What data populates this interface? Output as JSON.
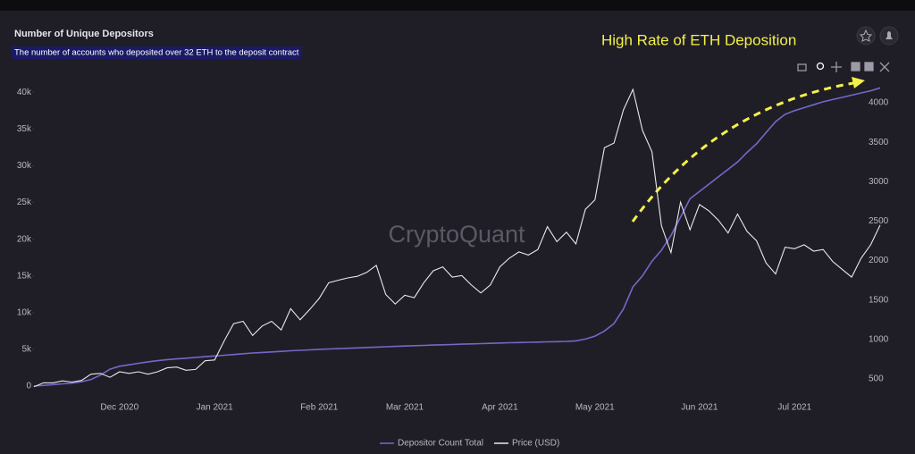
{
  "chart_data": {
    "type": "line",
    "title": "Number of Unique Depositors",
    "subtitle": "The number of accounts who deposited over 32 ETH to the deposit contract",
    "annotation": "High Rate of ETH Deposition",
    "watermark": "CryptoQuant",
    "categories": [
      null,
      null,
      null,
      null,
      null,
      null,
      null,
      null,
      null,
      "Dec 2020",
      null,
      null,
      null,
      null,
      null,
      null,
      null,
      null,
      null,
      "Jan 2021",
      null,
      null,
      null,
      null,
      null,
      null,
      null,
      null,
      null,
      null,
      "Feb 2021",
      null,
      null,
      null,
      null,
      null,
      null,
      null,
      null,
      "Mar 2021",
      null,
      null,
      null,
      null,
      null,
      null,
      null,
      null,
      null,
      "Apr 2021",
      null,
      null,
      null,
      null,
      null,
      null,
      null,
      null,
      null,
      "May 2021",
      null,
      null,
      null,
      null,
      null,
      null,
      null,
      null,
      null,
      null,
      "Jun 2021",
      null,
      null,
      null,
      null,
      null,
      null,
      null,
      null,
      null,
      "Jul 2021",
      null,
      null,
      null,
      null,
      null,
      null,
      null,
      null,
      null
    ],
    "series": [
      {
        "name": "Depositor Count Total",
        "color": "#7468c8",
        "values": [
          0,
          100,
          200,
          300,
          400,
          600,
          900,
          1500,
          2300,
          2700,
          2900,
          3100,
          3300,
          3450,
          3600,
          3700,
          3800,
          3900,
          4000,
          4100,
          4200,
          4300,
          4400,
          4500,
          4580,
          4650,
          4720,
          4800,
          4870,
          4930,
          5000,
          5050,
          5100,
          5150,
          5200,
          5250,
          5300,
          5350,
          5400,
          5450,
          5500,
          5540,
          5580,
          5620,
          5660,
          5700,
          5740,
          5780,
          5820,
          5860,
          5900,
          5930,
          5960,
          5990,
          6020,
          6050,
          6080,
          6150,
          6400,
          6800,
          7500,
          8500,
          10500,
          13500,
          15000,
          17000,
          18500,
          20500,
          23000,
          25500,
          26500,
          27500,
          28500,
          29500,
          30500,
          31800,
          33000,
          34500,
          36000,
          37000,
          37500,
          37900,
          38300,
          38700,
          39000,
          39300,
          39600,
          39900,
          40200,
          40600
        ]
      },
      {
        "name": "Price (USD)",
        "color": "#e8e8ee",
        "axis": "y2",
        "values": [
          400,
          450,
          450,
          475,
          460,
          480,
          560,
          570,
          520,
          590,
          570,
          590,
          560,
          590,
          640,
          650,
          610,
          620,
          730,
          740,
          980,
          1200,
          1230,
          1050,
          1170,
          1230,
          1120,
          1390,
          1250,
          1380,
          1520,
          1720,
          1750,
          1780,
          1800,
          1850,
          1940,
          1570,
          1450,
          1560,
          1530,
          1720,
          1870,
          1920,
          1790,
          1810,
          1690,
          1590,
          1690,
          1920,
          2030,
          2110,
          2070,
          2140,
          2430,
          2240,
          2360,
          2210,
          2650,
          2770,
          3430,
          3490,
          3910,
          4170,
          3650,
          3380,
          2440,
          2100,
          2740,
          2390,
          2710,
          2630,
          2510,
          2350,
          2590,
          2370,
          2250,
          1970,
          1830,
          2170,
          2150,
          2200,
          2120,
          2140,
          1990,
          1890,
          1790,
          2030,
          2200,
          2450
        ]
      }
    ],
    "ylim": [
      0,
      41000
    ],
    "yticks": [
      0,
      {
        "value": 5000,
        "label": "5k"
      },
      {
        "value": 10000,
        "label": "10k"
      },
      {
        "value": 15000,
        "label": "15k"
      },
      {
        "value": 20000,
        "label": "20k"
      },
      {
        "value": 25000,
        "label": "25k"
      },
      {
        "value": 30000,
        "label": "30k"
      },
      {
        "value": 35000,
        "label": "35k"
      },
      {
        "value": 40000,
        "label": "40k"
      }
    ],
    "y2lim": [
      409,
      4227
    ],
    "y2ticks": [
      500,
      1000,
      1500,
      2000,
      2500,
      3000,
      3500,
      4000
    ],
    "legend": "bottom"
  }
}
